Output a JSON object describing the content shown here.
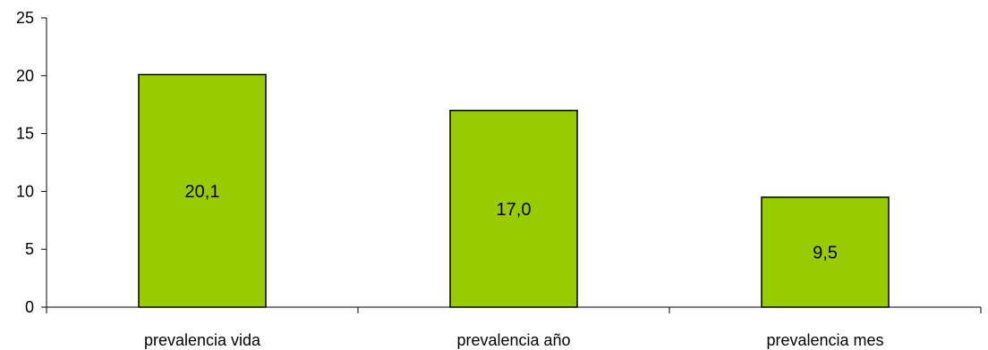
{
  "chart_data": {
    "type": "bar",
    "categories": [
      "prevalencia vida",
      "prevalencia año",
      "prevalencia mes"
    ],
    "values": [
      20.1,
      17.0,
      9.5
    ],
    "data_labels": [
      "20,1",
      "17,0",
      "9,5"
    ],
    "title": "",
    "xlabel": "",
    "ylabel": "",
    "ylim": [
      0,
      25
    ],
    "yticks": [
      0,
      5,
      10,
      15,
      20,
      25
    ],
    "ytick_labels": [
      "0",
      "5",
      "10",
      "15",
      "20",
      "25"
    ],
    "grid": false,
    "legend": "none",
    "bar_color": "#99CC00",
    "bar_border_color": "#000000"
  }
}
